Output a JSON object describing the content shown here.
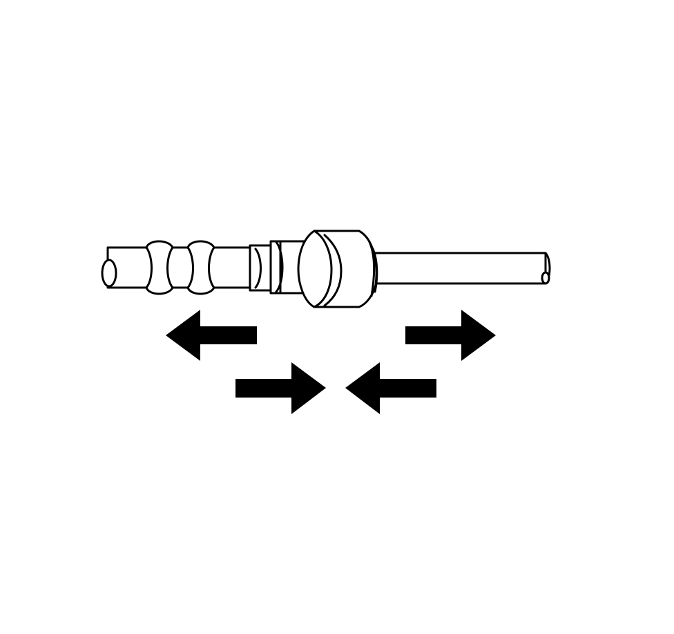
{
  "diagram": {
    "subject": "fuel-line-quick-connect-fitting",
    "colors": {
      "background": "#ffffff",
      "stroke": "#000000",
      "arrow_fill": "#000000"
    },
    "arrows": [
      {
        "name": "arrow-pull-left",
        "direction": "left",
        "icon": "arrow-left-icon"
      },
      {
        "name": "arrow-pull-right",
        "direction": "right",
        "icon": "arrow-right-icon"
      },
      {
        "name": "arrow-push-right",
        "direction": "right",
        "icon": "arrow-right-icon"
      },
      {
        "name": "arrow-push-left",
        "direction": "left",
        "icon": "arrow-left-icon"
      }
    ]
  }
}
